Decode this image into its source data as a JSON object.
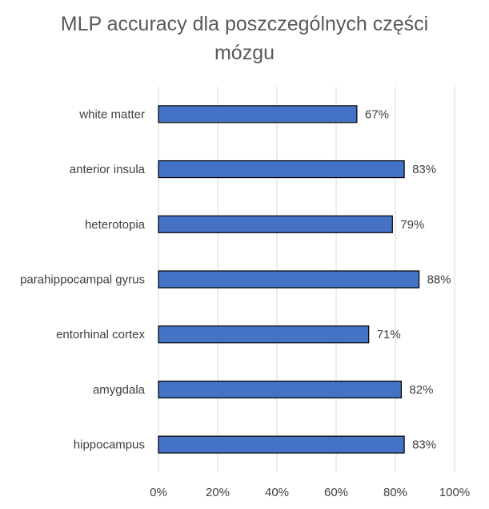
{
  "chart_data": {
    "type": "bar",
    "orientation": "horizontal",
    "title_lines": [
      "MLP accuracy dla poszczególnych części",
      "mózgu"
    ],
    "categories": [
      "white matter",
      "anterior insula",
      "heterotopia",
      "parahippocampal gyrus",
      "entorhinal cortex",
      "amygdala",
      "hippocampus"
    ],
    "values": [
      67,
      83,
      79,
      88,
      71,
      82,
      83
    ],
    "data_labels": [
      "67%",
      "83%",
      "79%",
      "88%",
      "71%",
      "82%",
      "83%"
    ],
    "xlim": [
      0,
      100
    ],
    "x_ticks": [
      0,
      20,
      40,
      60,
      80,
      100
    ],
    "x_tick_labels": [
      "0%",
      "20%",
      "40%",
      "60%",
      "80%",
      "100%"
    ],
    "grid": "vertical",
    "legend": "none",
    "bar_color": "#4472C4",
    "bar_edge_color": "#000000"
  }
}
